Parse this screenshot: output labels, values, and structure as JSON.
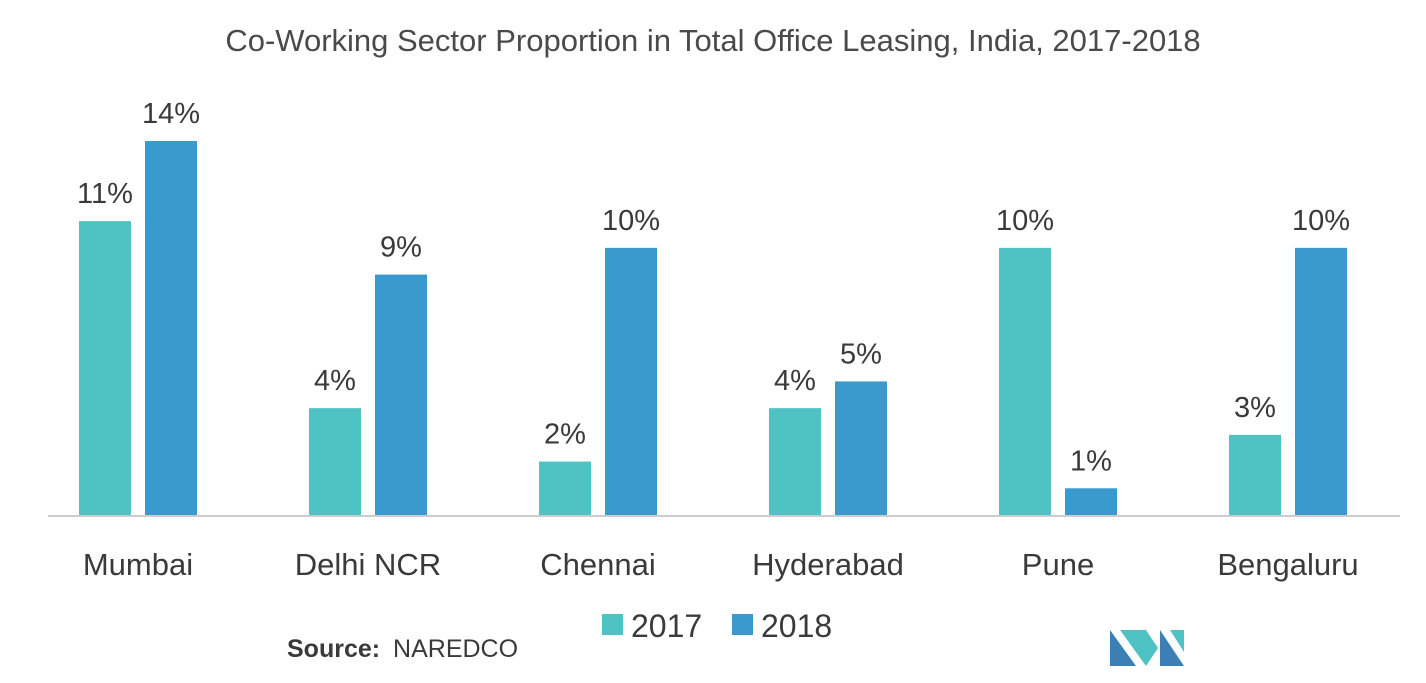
{
  "chart_data": {
    "type": "bar",
    "title": "Co-Working Sector Proportion in Total Office Leasing, India, 2017-2018",
    "categories": [
      "Mumbai",
      "Delhi NCR",
      "Chennai",
      "Hyderabad",
      "Pune",
      "Bengaluru"
    ],
    "series": [
      {
        "name": "2017",
        "color": "#4fc3c3",
        "values": [
          11,
          4,
          2,
          4,
          10,
          3
        ],
        "labels": [
          "11%",
          "4%",
          "2%",
          "4%",
          "10%",
          "3%"
        ]
      },
      {
        "name": "2018",
        "color": "#3b9acd",
        "values": [
          14,
          9,
          10,
          5,
          1,
          10
        ],
        "labels": [
          "14%",
          "9%",
          "10%",
          "5%",
          "1%",
          "10%"
        ]
      }
    ],
    "ylim": [
      0,
      14
    ],
    "xlabel": "",
    "ylabel": "",
    "grid": false,
    "legend_position": "bottom"
  },
  "source": {
    "label": "Source:",
    "value": "NAREDCO"
  },
  "logo": {
    "name": "mordor-intelligence-logo-icon",
    "colors": [
      "#4fc3c3",
      "#3b7fb5"
    ]
  },
  "axis_color": "#cccccc"
}
